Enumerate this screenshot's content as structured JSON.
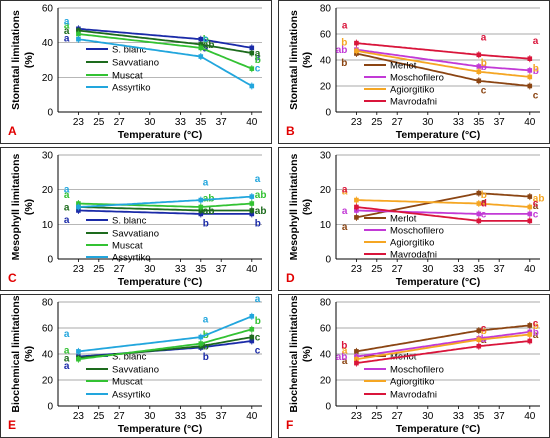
{
  "colors": {
    "S. blanc": "#1a2aa8",
    "Savvatiano": "#1d6b1d",
    "Muscat": "#33c233",
    "Assyrtiko": "#22a6dd",
    "Merlot": "#8b4513",
    "Moschofilero": "#c23ad6",
    "Agiorgitiko": "#f5a623",
    "Mavrodafni": "#d9153b",
    "axis": "#000000",
    "panel_label": "#e10000"
  },
  "chart_data": [
    {
      "type": "line",
      "panel_label": "A",
      "xlabel": "Temperature (°C)",
      "ylabel": "Stomatal limitations (%)",
      "xlim": [
        21,
        41
      ],
      "ylim": [
        0,
        60
      ],
      "xticks": [
        23,
        25,
        27,
        30,
        33,
        35,
        37,
        40
      ],
      "yticks": [
        0,
        20,
        40,
        60
      ],
      "x": [
        23,
        35,
        40
      ],
      "series": [
        {
          "name": "S. blanc",
          "values": [
            48,
            42,
            37
          ],
          "letters": [
            "a",
            "a",
            "a"
          ]
        },
        {
          "name": "Savvatiano",
          "values": [
            47,
            39,
            34
          ],
          "letters": [
            "a",
            "ab",
            "a"
          ]
        },
        {
          "name": "Muscat",
          "values": [
            45,
            37,
            25
          ],
          "letters": [
            "a",
            "b",
            "b"
          ]
        },
        {
          "name": "Assyrtiko",
          "values": [
            42,
            32,
            15
          ],
          "letters": [
            "a",
            "c",
            "c"
          ]
        }
      ]
    },
    {
      "type": "line",
      "panel_label": "B",
      "xlabel": "Temperature (°C)",
      "ylabel": "Stomatal limitations (%)",
      "xlim": [
        21,
        41
      ],
      "ylim": [
        0,
        80
      ],
      "xticks": [
        23,
        25,
        27,
        30,
        33,
        35,
        37,
        40
      ],
      "yticks": [
        0,
        20,
        40,
        60,
        80
      ],
      "x": [
        23,
        35,
        40
      ],
      "series": [
        {
          "name": "Merlot",
          "values": [
            45,
            24,
            20
          ],
          "letters": [
            "b",
            "c",
            "c"
          ]
        },
        {
          "name": "Moschofilero",
          "values": [
            48,
            35,
            32
          ],
          "letters": [
            "ab",
            "b",
            "b"
          ]
        },
        {
          "name": "Agiorgitiko",
          "values": [
            47,
            31,
            27
          ],
          "letters": [
            "b",
            "b",
            "b"
          ]
        },
        {
          "name": "Mavrodafni",
          "values": [
            53,
            44,
            41
          ],
          "letters": [
            "a",
            "a",
            "a"
          ]
        }
      ]
    },
    {
      "type": "line",
      "panel_label": "C",
      "xlabel": "Temperature (°C)",
      "ylabel": "Mesophyll limitations (%)",
      "xlim": [
        21,
        41
      ],
      "ylim": [
        0,
        30
      ],
      "xticks": [
        23,
        25,
        27,
        30,
        33,
        35,
        37,
        40
      ],
      "yticks": [
        0,
        10,
        20,
        30
      ],
      "x": [
        23,
        35,
        40
      ],
      "series": [
        {
          "name": "S. blanc",
          "values": [
            14,
            13,
            13
          ],
          "letters": [
            "a",
            "b",
            "b"
          ]
        },
        {
          "name": "Savvatiano",
          "values": [
            15,
            14,
            14
          ],
          "letters": [
            "a",
            "ab",
            "ab"
          ]
        },
        {
          "name": "Muscat",
          "values": [
            16,
            15,
            16
          ],
          "letters": [
            "a",
            "ab",
            "ab"
          ]
        },
        {
          "name": "Assyrtiko",
          "values": [
            15,
            17,
            18
          ],
          "letters": [
            "a",
            "a",
            "a"
          ]
        }
      ]
    },
    {
      "type": "line",
      "panel_label": "D",
      "xlabel": "Temperature (°C)",
      "ylabel": "Mesophyll limitations (%)",
      "xlim": [
        21,
        41
      ],
      "ylim": [
        0,
        30
      ],
      "xticks": [
        23,
        25,
        27,
        30,
        33,
        35,
        37,
        40
      ],
      "yticks": [
        0,
        10,
        20,
        30
      ],
      "x": [
        23,
        35,
        40
      ],
      "series": [
        {
          "name": "Merlot",
          "values": [
            12,
            19,
            18
          ],
          "letters": [
            "a",
            "a",
            "a"
          ]
        },
        {
          "name": "Moschofilero",
          "values": [
            14,
            13,
            13
          ],
          "letters": [
            "a",
            "c",
            "c"
          ]
        },
        {
          "name": "Agiorgitiko",
          "values": [
            17,
            16,
            15
          ],
          "letters": [
            "a",
            "b",
            "ab"
          ]
        },
        {
          "name": "Mavrodafni",
          "values": [
            15,
            11,
            11
          ],
          "letters": [
            "a",
            "d",
            "c"
          ]
        }
      ]
    },
    {
      "type": "line",
      "panel_label": "E",
      "xlabel": "Temperature (°C)",
      "ylabel": "Biochemical limitations (%)",
      "xlim": [
        21,
        41
      ],
      "ylim": [
        0,
        80
      ],
      "xticks": [
        23,
        25,
        27,
        30,
        33,
        35,
        37,
        40
      ],
      "yticks": [
        0,
        20,
        40,
        60,
        80
      ],
      "x": [
        23,
        35,
        40
      ],
      "series": [
        {
          "name": "S. blanc",
          "values": [
            38,
            45,
            50
          ],
          "letters": [
            "a",
            "b",
            "c"
          ]
        },
        {
          "name": "Savvatiano",
          "values": [
            37,
            46,
            53
          ],
          "letters": [
            "a",
            "b",
            "c"
          ]
        },
        {
          "name": "Muscat",
          "values": [
            36,
            48,
            59
          ],
          "letters": [
            "a",
            "b",
            "b"
          ]
        },
        {
          "name": "Assyrtiko",
          "values": [
            42,
            53,
            69
          ],
          "letters": [
            "a",
            "a",
            "a"
          ]
        }
      ]
    },
    {
      "type": "line",
      "panel_label": "F",
      "xlabel": "Temperature (°C)",
      "ylabel": "Biochemical limitations (%)",
      "xlim": [
        21,
        41
      ],
      "ylim": [
        0,
        80
      ],
      "xticks": [
        23,
        25,
        27,
        30,
        33,
        35,
        37,
        40
      ],
      "yticks": [
        0,
        20,
        40,
        60,
        80
      ],
      "x": [
        23,
        35,
        40
      ],
      "series": [
        {
          "name": "Merlot",
          "values": [
            42,
            58,
            62
          ],
          "letters": [
            "a",
            "a",
            "a"
          ]
        },
        {
          "name": "Moschofilero",
          "values": [
            38,
            52,
            57
          ],
          "letters": [
            "ab",
            "b",
            "b"
          ]
        },
        {
          "name": "Agiorgitiko",
          "values": [
            36,
            51,
            55
          ],
          "letters": [
            "a",
            "b",
            "b"
          ]
        },
        {
          "name": "Mavrodafni",
          "values": [
            33,
            46,
            50
          ],
          "letters": [
            "b",
            "c",
            "c"
          ]
        }
      ]
    }
  ]
}
